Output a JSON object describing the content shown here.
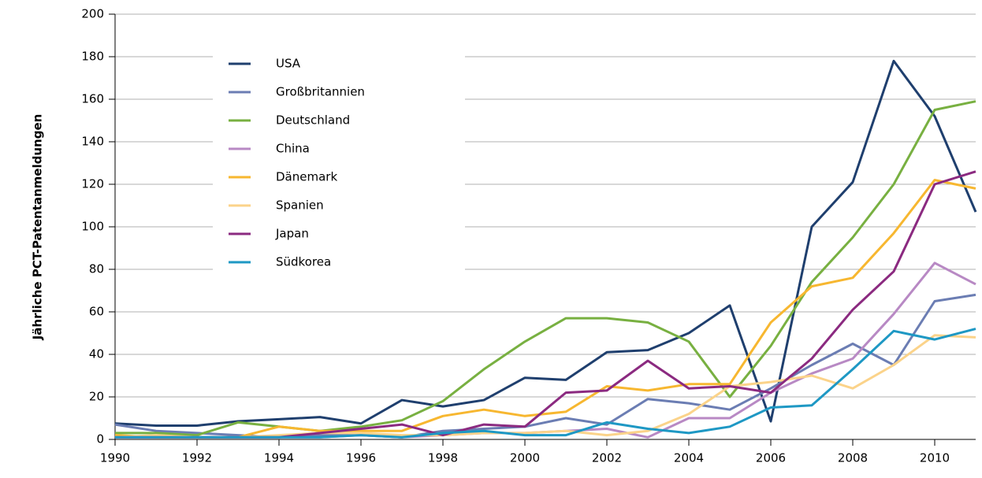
{
  "chart_data": {
    "type": "line",
    "y_label": "Jährliche PCT-Patentanmeldungen",
    "x": [
      1990,
      1991,
      1992,
      1993,
      1994,
      1995,
      1996,
      1997,
      1998,
      1999,
      2000,
      2001,
      2002,
      2003,
      2004,
      2005,
      2006,
      2007,
      2008,
      2009,
      2010,
      2011
    ],
    "series": [
      {
        "name": "USA",
        "color": "#1f3f6e",
        "values": [
          7.5,
          6.5,
          6.5,
          8.5,
          9.5,
          10.5,
          7.5,
          18.5,
          15.5,
          18.5,
          29,
          28,
          41,
          42,
          50,
          63,
          8.5,
          100,
          121,
          178,
          152,
          107
        ]
      },
      {
        "name": "Großbritannien",
        "color": "#6b7db3",
        "values": [
          7,
          4,
          3,
          2,
          1,
          2,
          2,
          1,
          4,
          5,
          6,
          10,
          7,
          19,
          17,
          14,
          24,
          35,
          45,
          35,
          65,
          68
        ]
      },
      {
        "name": "Deutschland",
        "color": "#78b041",
        "values": [
          3,
          3,
          2,
          8,
          6,
          4,
          6,
          9,
          18,
          33,
          46,
          57,
          57,
          55,
          46,
          20,
          44,
          74,
          95,
          120,
          155,
          159
        ]
      },
      {
        "name": "China",
        "color": "#b889c4",
        "values": [
          1,
          1,
          1,
          1,
          1,
          1,
          2,
          1,
          2,
          3,
          3,
          4,
          5,
          1,
          10,
          10,
          22,
          31,
          38,
          59,
          83,
          73
        ]
      },
      {
        "name": "Dänemark",
        "color": "#f7b730",
        "values": [
          2,
          1,
          1,
          1,
          6,
          4,
          4,
          4,
          11,
          14,
          11,
          13,
          25,
          23,
          26,
          26,
          55,
          72,
          76,
          97,
          122,
          118
        ]
      },
      {
        "name": "Spanien",
        "color": "#fbd38a",
        "values": [
          1,
          2,
          1,
          1,
          2,
          3,
          3,
          2,
          2,
          3,
          3,
          4,
          2,
          4,
          12,
          25,
          27,
          30,
          24,
          35,
          49,
          48
        ]
      },
      {
        "name": "Japan",
        "color": "#8b2a80",
        "values": [
          1,
          1,
          1,
          1,
          1,
          3,
          5,
          7,
          2,
          7,
          6,
          22,
          23,
          37,
          24,
          25,
          22,
          38,
          61,
          79,
          120,
          126
        ]
      },
      {
        "name": "Südkorea",
        "color": "#1e98c4",
        "values": [
          1,
          1,
          1,
          1,
          1,
          1,
          2,
          1,
          3,
          4,
          2,
          2,
          8,
          5,
          3,
          6,
          15,
          16,
          33,
          51,
          47,
          52
        ]
      }
    ],
    "xlim": [
      1990,
      2011
    ],
    "xticks": [
      1990,
      1992,
      1994,
      1996,
      1998,
      2000,
      2002,
      2004,
      2006,
      2008,
      2010
    ],
    "ylim": [
      0,
      200
    ],
    "yticks": [
      0,
      20,
      40,
      60,
      80,
      100,
      120,
      140,
      160,
      180,
      200
    ],
    "grid": true
  }
}
